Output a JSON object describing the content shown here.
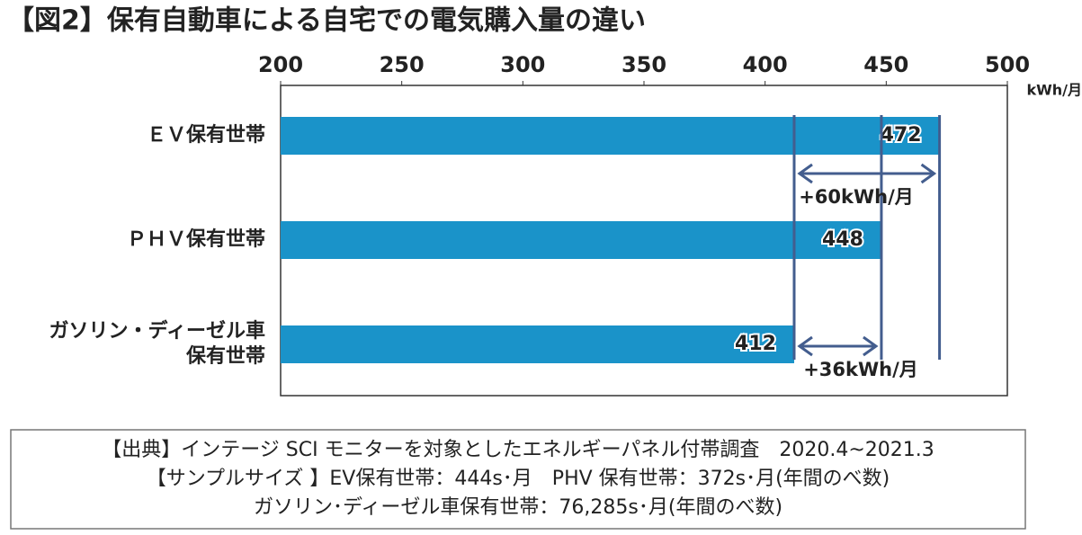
{
  "chart_data": {
    "type": "hbar",
    "title": "【図2】保有自動車による自宅での電気購入量の違い",
    "categories": [
      "ＥＶ保有世帯",
      "ＰＨＶ保有世帯",
      "ガソリン・ディーゼル車\n保有世帯"
    ],
    "values": [
      472,
      448,
      412
    ],
    "color": "#1a93c9",
    "reference_color": "#435d8e",
    "xlim": [
      200,
      500
    ],
    "xticks": [
      200,
      250,
      300,
      350,
      400,
      450,
      500
    ],
    "x_unit": "kWh/月",
    "annotations": [
      "+60kWh/月",
      "+36kWh/月"
    ],
    "source": [
      "【出典】インテージ SCI モニターを対象としたエネルギーパネル付帯調査　2020.4~2021.3",
      "【サンプルサイズ 】EV保有世帯：444s･月　PHV 保有世帯：372s･月(年間のべ数)",
      "ガソリン･ディーゼル車保有世帯：76,285s･月(年間のべ数)"
    ]
  }
}
